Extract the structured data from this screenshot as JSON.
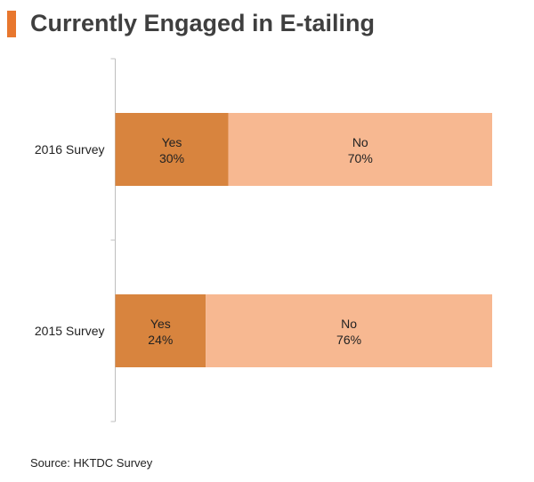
{
  "title": "Currently Engaged in E-tailing",
  "source": "Source: HKTDC Survey",
  "colors": {
    "accent": "#E8772E",
    "yes": "#D8843E",
    "no": "#F7B891",
    "axis": "#BFBFBF",
    "title": "#3F3F3F",
    "text": "#222222"
  },
  "chart_data": {
    "type": "bar",
    "orientation": "horizontal",
    "stacked": true,
    "categories": [
      "2016 Survey",
      "2015 Survey"
    ],
    "series": [
      {
        "name": "Yes",
        "values": [
          30,
          24
        ]
      },
      {
        "name": "No",
        "values": [
          70,
          76
        ]
      }
    ],
    "value_suffix": "%",
    "xlim": [
      0,
      100
    ],
    "grid": false,
    "legend": "none"
  }
}
